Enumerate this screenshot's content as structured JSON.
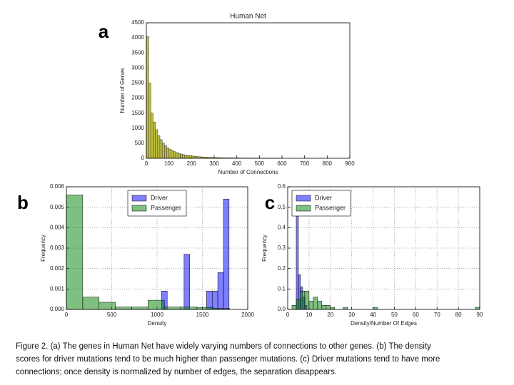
{
  "chart_data": [
    {
      "type": "histogram",
      "panel_label": "a",
      "title": "Human Net",
      "xlabel": "Number of Connections",
      "ylabel": "Number of Genes",
      "bins": [
        0,
        10,
        20,
        30,
        40,
        50,
        60,
        70,
        80,
        90,
        100,
        110,
        120,
        130,
        140,
        150,
        160,
        170,
        180,
        190,
        200,
        210,
        220,
        230,
        240,
        250,
        260,
        270,
        280,
        290,
        300,
        310,
        320,
        330,
        340,
        350,
        360,
        370,
        380,
        390,
        400,
        410,
        420,
        430,
        440,
        450,
        460,
        470,
        480,
        490,
        500,
        510,
        520,
        530,
        540,
        550,
        560,
        570,
        580,
        590,
        600
      ],
      "values": [
        4050,
        2500,
        1500,
        1200,
        950,
        750,
        620,
        500,
        420,
        350,
        300,
        260,
        220,
        190,
        160,
        140,
        120,
        105,
        95,
        85,
        75,
        65,
        58,
        52,
        46,
        41,
        37,
        33,
        30,
        27,
        25,
        23,
        21,
        19,
        17,
        16,
        15,
        14,
        13,
        12,
        11,
        10,
        10,
        9,
        9,
        8,
        8,
        7,
        7,
        6,
        6,
        6,
        5,
        5,
        5,
        4,
        4,
        4,
        3,
        3
      ],
      "color": "#bfbf3f",
      "edgecolor": "#333333",
      "xlim": [
        0,
        900
      ],
      "xticks": [
        0,
        100,
        200,
        300,
        400,
        500,
        600,
        700,
        800,
        900
      ],
      "ylim": [
        0,
        4500
      ],
      "yticks": [
        0,
        500,
        1000,
        1500,
        2000,
        2500,
        3000,
        3500,
        4000,
        4500
      ],
      "grid": false
    },
    {
      "type": "histogram",
      "panel_label": "b",
      "xlabel": "Density",
      "ylabel": "Frequency",
      "series": [
        {
          "name": "Driver",
          "color": "#0000ff",
          "bins": [
            1050,
            1112,
            1174,
            1236,
            1298,
            1360,
            1422,
            1484,
            1546,
            1608,
            1670,
            1732,
            1794
          ],
          "values": [
            0.0009,
            0,
            0,
            0,
            0.0027,
            0,
            0,
            0,
            0.0009,
            0.0009,
            0.0018,
            0.0054
          ]
        },
        {
          "name": "Passenger",
          "color": "#008000",
          "bins": [
            0,
            180,
            360,
            540,
            720,
            900,
            1080,
            1260,
            1440,
            1620,
            1800
          ],
          "values": [
            0.0056,
            0.0006,
            0.00035,
            0.00012,
            0.00012,
            0.00045,
            0.00012,
            0.00012,
            0.0001,
            5e-05
          ]
        }
      ],
      "alpha": 0.5,
      "edgecolor": "#000000",
      "xlim": [
        0,
        2000
      ],
      "xticks": [
        0,
        500,
        1000,
        1500,
        2000
      ],
      "ylim": [
        0,
        0.006
      ],
      "yticks": [
        {
          "value": 0,
          "label": "0.000"
        },
        0.001,
        0.002,
        0.003,
        0.004,
        0.005,
        0.006
      ],
      "grid": true,
      "legend": "upper center"
    },
    {
      "type": "histogram",
      "panel_label": "c",
      "xlabel": "Density/Number Of Edges",
      "ylabel": "Frequency",
      "series": [
        {
          "name": "Driver",
          "color": "#0000ff",
          "bins": [
            4,
            5,
            6,
            7,
            8,
            9
          ],
          "values": [
            0.52,
            0.17,
            0.11,
            0.06,
            0.02
          ]
        },
        {
          "name": "Passenger",
          "color": "#008000",
          "bins": [
            0,
            2,
            4,
            6,
            8,
            10,
            12,
            14,
            16,
            18,
            20,
            22,
            24,
            26,
            28,
            30,
            32,
            34,
            36,
            38,
            40,
            42,
            44,
            46,
            48,
            50,
            52,
            54,
            56,
            58,
            60,
            62,
            64,
            66,
            68,
            70,
            72,
            74,
            76,
            78,
            80,
            82,
            84,
            86,
            88,
            90
          ],
          "values": [
            0,
            0.02,
            0.05,
            0.09,
            0.09,
            0.04,
            0.06,
            0.04,
            0.02,
            0.02,
            0.01,
            0,
            0,
            0.01,
            0,
            0,
            0,
            0,
            0,
            0,
            0.01,
            0,
            0,
            0,
            0,
            0,
            0,
            0,
            0,
            0,
            0,
            0,
            0,
            0,
            0,
            0,
            0,
            0,
            0,
            0,
            0,
            0,
            0,
            0,
            0.01
          ]
        }
      ],
      "alpha": 0.5,
      "edgecolor": "#000000",
      "xlim": [
        0,
        90
      ],
      "xticks": [
        0,
        10,
        20,
        30,
        40,
        50,
        60,
        70,
        80,
        90
      ],
      "ylim": [
        0,
        0.6
      ],
      "yticks": [
        {
          "value": 0,
          "label": "0.0"
        },
        0.1,
        0.2,
        0.3,
        0.4,
        0.5,
        0.6
      ],
      "grid": true,
      "legend": "upper left"
    }
  ],
  "caption": {
    "lines": [
      "Figure 2. (a) The genes in Human Net have widely varying numbers of connections to other genes. (b) The density",
      "scores for driver mutations tend to be much higher than passenger mutations. (c) Driver mutations tend to have more",
      "connections; once density is normalized by number of edges, the separation disappears."
    ]
  }
}
